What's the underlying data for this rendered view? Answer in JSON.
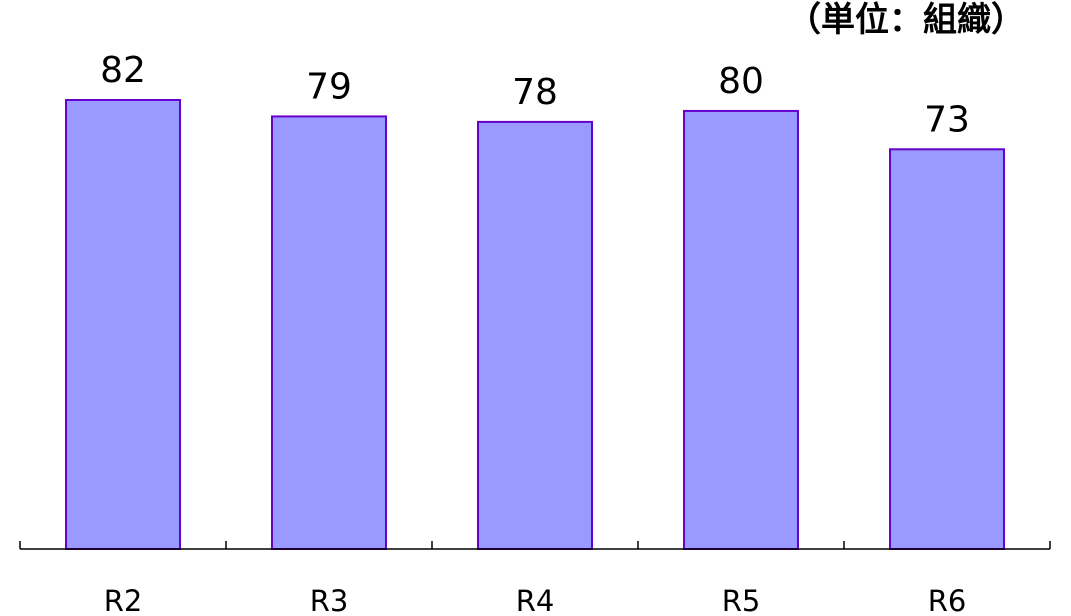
{
  "unit_label": "（単位：組織）",
  "colors": {
    "bar_fill": "#9999FF",
    "bar_stroke": "#6600CC",
    "axis": "#000000",
    "text": "#000000"
  },
  "chart_data": {
    "type": "bar",
    "categories": [
      "R2",
      "R3",
      "R4",
      "R5",
      "R6"
    ],
    "values": [
      82,
      79,
      78,
      80,
      73
    ],
    "ylim": [
      0,
      82
    ],
    "grid": false,
    "data_labels": true
  }
}
